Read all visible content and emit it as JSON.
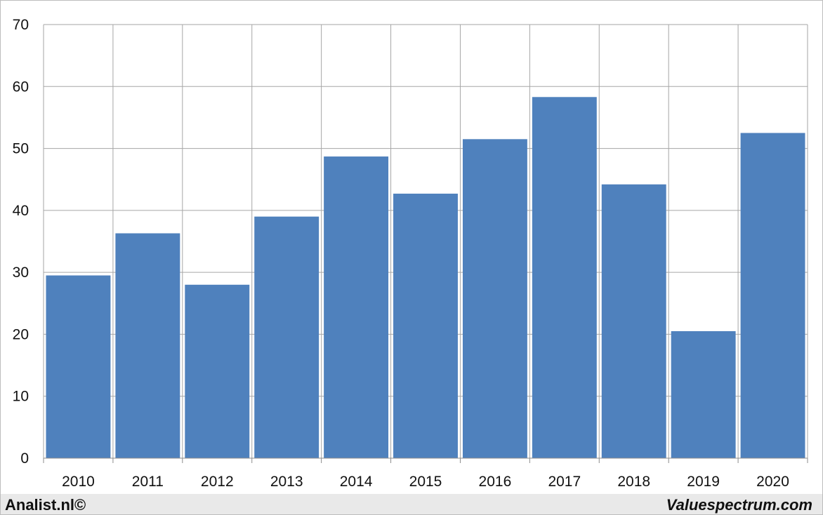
{
  "chart_data": {
    "type": "bar",
    "categories": [
      "2010",
      "2011",
      "2012",
      "2013",
      "2014",
      "2015",
      "2016",
      "2017",
      "2018",
      "2019",
      "2020"
    ],
    "values": [
      29.5,
      36.3,
      28.0,
      39.0,
      48.7,
      42.7,
      51.5,
      58.3,
      44.2,
      20.5,
      52.5
    ],
    "ylim": [
      0,
      70
    ],
    "yticks": [
      0,
      10,
      20,
      30,
      40,
      50,
      60,
      70
    ],
    "grid": true,
    "bar_color": "#4f81bd"
  },
  "footer": {
    "left": "Analist.nl©",
    "right": "Valuespectrum.com"
  }
}
